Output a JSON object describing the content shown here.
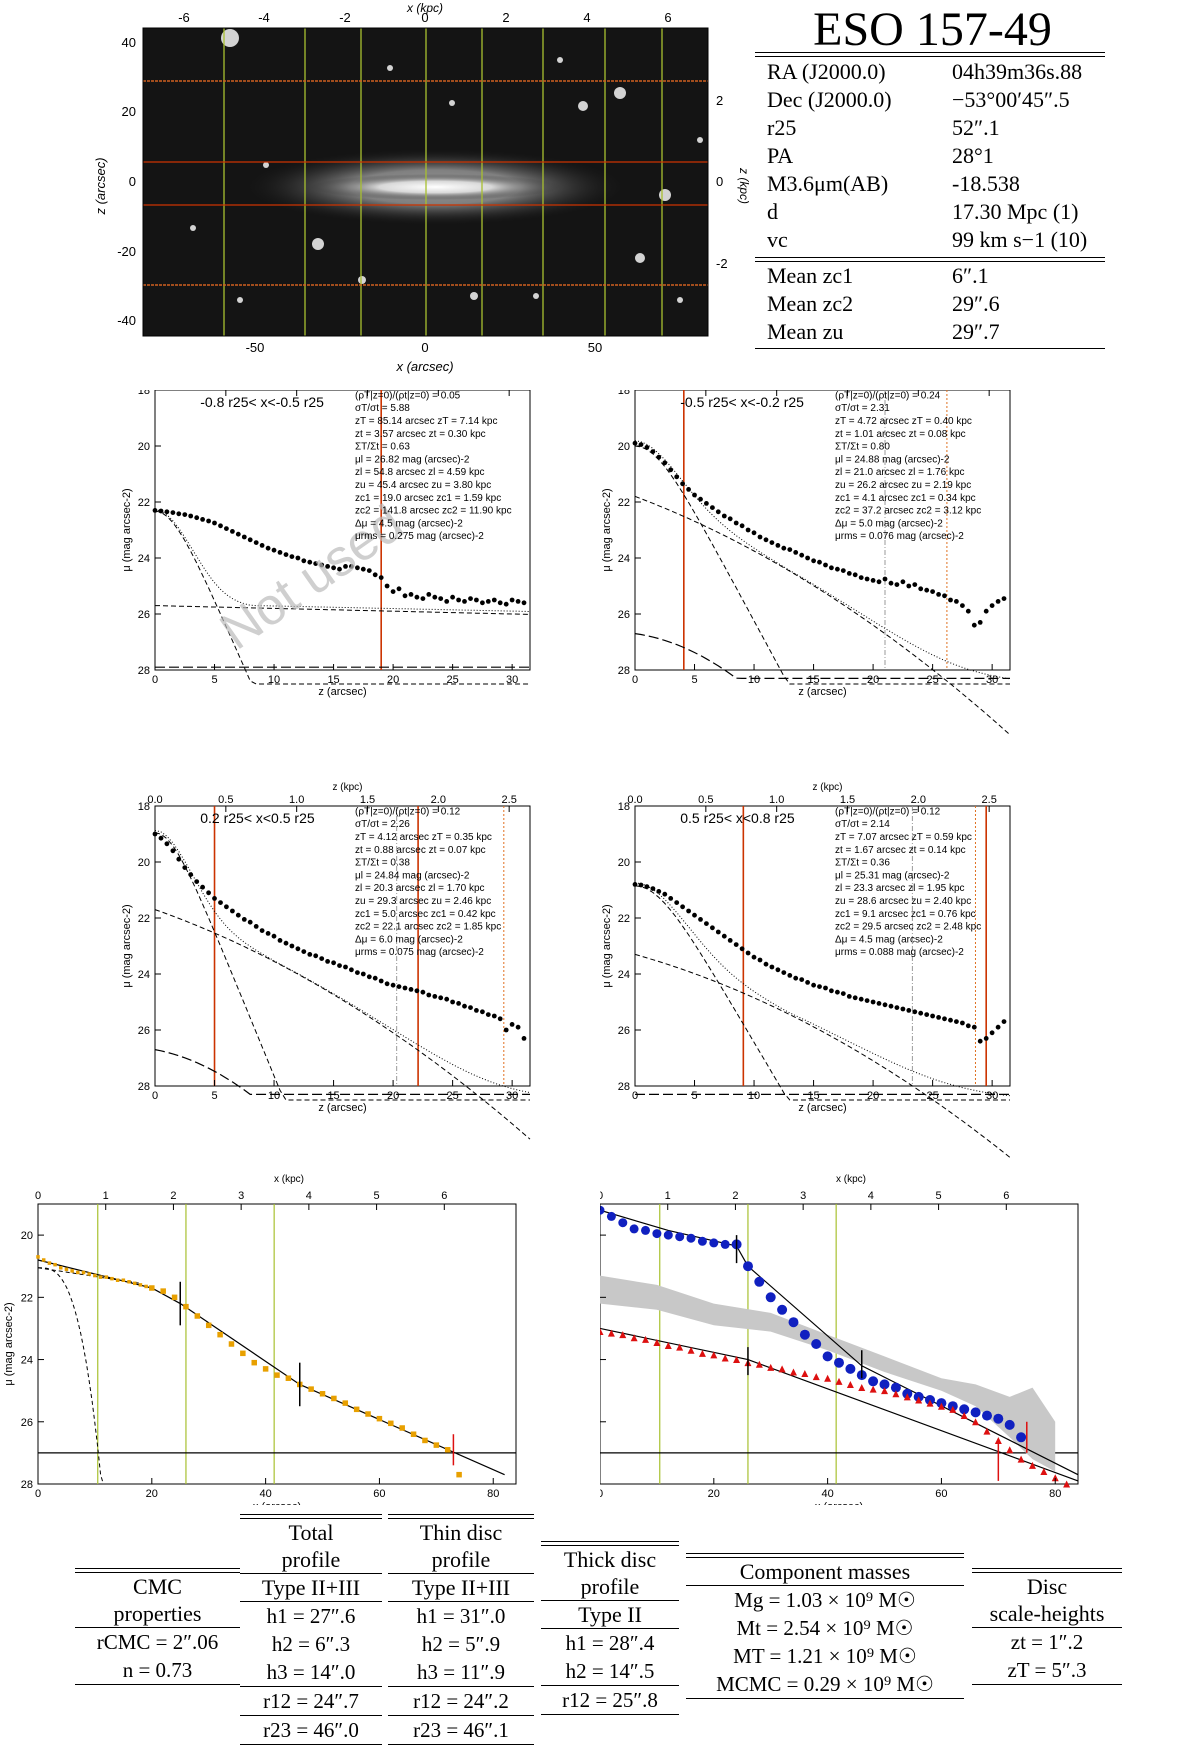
{
  "galaxy": {
    "name": "ESO 157-49",
    "rows": [
      {
        "key": "RA (J2000.0)",
        "value": "04h39m36s.88"
      },
      {
        "key": "Dec (J2000.0)",
        "value": "−53°00′45″.5"
      },
      {
        "key": "r25",
        "value": "52″.1"
      },
      {
        "key": "PA",
        "value": "28°1"
      },
      {
        "key": "M3.6μm(AB)",
        "value": "-18.538"
      },
      {
        "key": "d",
        "value": "17.30 Mpc   (1)"
      },
      {
        "key": "vc",
        "value": "99 km s−1   (10)"
      }
    ],
    "means": [
      {
        "key": "Mean zc1",
        "value": "6″.1"
      },
      {
        "key": "Mean zc2",
        "value": "29″.6"
      },
      {
        "key": "Mean zu",
        "value": "29″.7"
      }
    ]
  },
  "image_panel": {
    "top_label": "x (kpc)",
    "bottom_label": "x (arcsec)",
    "left_label": "z (arcsec)",
    "right_label": "z (kpc)",
    "top_ticks": [
      "-6",
      "-4",
      "-2",
      "0",
      "2",
      "4",
      "6"
    ],
    "bottom_ticks": [
      "-50",
      "0",
      "50"
    ],
    "left_ticks": [
      "40",
      "20",
      "0",
      "-20",
      "-40"
    ],
    "right_ticks": [
      "2",
      "0",
      "-2"
    ]
  },
  "profiles": [
    {
      "label": "-0.8 r25< x<-0.5 r25",
      "watermark": "Not used",
      "params": [
        "(ρT|z=0)/(ρt|z=0) = 0.05",
        "σT/σt = 5.88",
        "zT = 85.14 arcsec    zT = 7.14 kpc",
        "zt = 3.57 arcsec    zt = 0.30 kpc",
        "ΣT/Σt = 0.63",
        "μl = 26.82 mag (arcsec)-2",
        "zl = 54.8 arcsec    zl = 4.59 kpc",
        "zu = 45.4 arcsec    zu = 3.80 kpc",
        "zc1 = 19.0 arcsec   zc1 = 1.59 kpc",
        "zc2 = 141.8 arcsec  zc2 = 11.90 kpc",
        "Δμ = 4.5 mag (arcsec)-2",
        "μrms = 0.275 mag (arcsec)-2"
      ]
    },
    {
      "label": "-0.5 r25< x<-0.2 r25",
      "watermark": "",
      "params": [
        "(ρT|z=0)/(ρt|z=0) = 0.24",
        "σT/σt = 2.31",
        "zT = 4.72 arcsec    zT = 0.40 kpc",
        "zt = 1.01 arcsec    zt = 0.08 kpc",
        "ΣT/Σt = 0.80",
        "μl = 24.88 mag (arcsec)-2",
        "zl = 21.0 arcsec    zl = 1.76 kpc",
        "zu = 26.2 arcsec    zu = 2.19 kpc",
        "zc1 = 4.1 arcsec    zc1 = 0.34 kpc",
        "zc2 = 37.2 arcsec   zc2 = 3.12 kpc",
        "Δμ = 5.0 mag (arcsec)-2",
        "μrms = 0.076 mag (arcsec)-2"
      ]
    },
    {
      "label": "0.2 r25< x<0.5 r25",
      "watermark": "",
      "params": [
        "(ρT|z=0)/(ρt|z=0) = 0.12",
        "σT/σt = 2.26",
        "zT = 4.12 arcsec    zT = 0.35 kpc",
        "zt = 0.88 arcsec    zt = 0.07 kpc",
        "ΣT/Σt = 0.38",
        "μl = 24.84 mag (arcsec)-2",
        "zl = 20.3 arcsec    zl = 1.70 kpc",
        "zu = 29.3 arcsec    zu = 2.46 kpc",
        "zc1 = 5.0 arcsec    zc1 = 0.42 kpc",
        "zc2 = 22.1 arcsec   zc2 = 1.85 kpc",
        "Δμ = 6.0 mag (arcsec)-2",
        "μrms = 0.075 mag (arcsec)-2"
      ]
    },
    {
      "label": "0.5 r25< x<0.8 r25",
      "watermark": "",
      "params": [
        "(ρT|z=0)/(ρt|z=0) = 0.12",
        "σT/σt = 2.14",
        "zT = 7.07 arcsec    zT = 0.59 kpc",
        "zt = 1.67 arcsec    zt = 0.14 kpc",
        "ΣT/Σt = 0.36",
        "μl = 25.31 mag (arcsec)-2",
        "zl = 23.3 arcsec    zl = 1.95 kpc",
        "zu = 28.6 arcsec    zu = 2.40 kpc",
        "zc1 = 9.1 arcsec    zc1 = 0.76 kpc",
        "zc2 = 29.5 arcsec   zc2 = 2.48 kpc",
        "Δμ = 4.5 mag (arcsec)-2",
        "μrms = 0.088 mag (arcsec)-2"
      ]
    }
  ],
  "profile_axes": {
    "xlabel": "z (arcsec)",
    "toplabel": "z (kpc)",
    "ylabel": "μ (mag arcsec-2)",
    "xticks": [
      "0",
      "5",
      "10",
      "15",
      "20",
      "25",
      "30"
    ],
    "topticks": [
      "0.0",
      "0.5",
      "1.0",
      "1.5",
      "2.0",
      "2.5"
    ],
    "yticks": [
      "18",
      "20",
      "22",
      "24",
      "26",
      "28"
    ]
  },
  "bottom_axes": {
    "xlabel": "x (arcsec)",
    "toplabel": "x (kpc)",
    "ylabel": "μ (mag arcsec-2)",
    "xticks": [
      "0",
      "20",
      "40",
      "60",
      "80"
    ],
    "topticks": [
      "0",
      "1",
      "2",
      "3",
      "4",
      "5",
      "6"
    ],
    "yticks": [
      "20",
      "22",
      "24",
      "26",
      "28"
    ]
  },
  "colors": {
    "orange_line": "#cc3300",
    "green_line": "#a8c030",
    "total_points": "#e8a000",
    "thin_points": "#1020c0",
    "thick_points": "#dd1010",
    "band": "#c8c8c8"
  },
  "chart_data": [
    {
      "type": "scatter",
      "title": "-0.8 r25< x<-0.5 r25",
      "xlabel": "z (arcsec)",
      "ylabel": "μ (mag arcsec-2)",
      "xlim": [
        0,
        31.5
      ],
      "ylim": [
        28,
        18
      ],
      "x": [
        0,
        0.5,
        1,
        1.5,
        2,
        2.5,
        3,
        3.5,
        4,
        4.5,
        5,
        5.5,
        6,
        6.5,
        7,
        7.5,
        8,
        8.5,
        9,
        9.5,
        10,
        10.5,
        11,
        11.5,
        12,
        12.5,
        13,
        13.5,
        14,
        14.5,
        15,
        15.5,
        16,
        16.5,
        17,
        17.5,
        18,
        18.5,
        19,
        19.5,
        20,
        20.5,
        21,
        21.5,
        22,
        22.5,
        23,
        23.5,
        24,
        24.5,
        25,
        25.5,
        26,
        26.5,
        27,
        27.5,
        28,
        28.5,
        29,
        29.5,
        30,
        30.5,
        31
      ],
      "y": [
        22.3,
        22.32,
        22.35,
        22.38,
        22.42,
        22.45,
        22.5,
        22.56,
        22.62,
        22.68,
        22.75,
        22.85,
        22.95,
        23.05,
        23.15,
        23.25,
        23.35,
        23.45,
        23.55,
        23.65,
        23.72,
        23.8,
        23.88,
        23.95,
        24.0,
        24.1,
        24.15,
        24.2,
        24.25,
        24.3,
        24.35,
        24.4,
        24.3,
        24.3,
        24.35,
        24.4,
        24.45,
        24.6,
        24.7,
        25.0,
        25.2,
        25.1,
        25.35,
        25.3,
        25.4,
        25.45,
        25.3,
        25.4,
        25.45,
        25.55,
        25.4,
        25.5,
        25.55,
        25.45,
        25.5,
        25.6,
        25.55,
        25.5,
        25.6,
        25.65,
        25.5,
        25.55,
        25.6
      ]
    },
    {
      "type": "scatter",
      "title": "-0.5 r25< x<-0.2 r25",
      "xlabel": "z (arcsec)",
      "ylabel": "μ (mag arcsec-2)",
      "xlim": [
        0,
        31.5
      ],
      "ylim": [
        28,
        18
      ],
      "x": [
        0,
        0.5,
        1,
        1.5,
        2,
        2.5,
        3,
        3.5,
        4,
        4.5,
        5,
        5.5,
        6,
        6.5,
        7,
        7.5,
        8,
        8.5,
        9,
        9.5,
        10,
        10.5,
        11,
        11.5,
        12,
        12.5,
        13,
        13.5,
        14,
        14.5,
        15,
        15.5,
        16,
        16.5,
        17,
        17.5,
        18,
        18.5,
        19,
        19.5,
        20,
        20.5,
        21,
        21.5,
        22,
        22.5,
        23,
        23.5,
        24,
        24.5,
        25,
        25.5,
        26,
        26.5,
        27,
        27.5,
        28,
        28.5,
        29,
        29.5,
        30,
        30.5,
        31
      ],
      "y": [
        19.9,
        19.95,
        20.05,
        20.2,
        20.4,
        20.6,
        20.85,
        21.1,
        21.35,
        21.55,
        21.75,
        21.9,
        22.05,
        22.2,
        22.35,
        22.5,
        22.6,
        22.75,
        22.85,
        23.0,
        23.1,
        23.25,
        23.35,
        23.45,
        23.55,
        23.65,
        23.7,
        23.8,
        23.9,
        24.0,
        24.1,
        24.15,
        24.25,
        24.35,
        24.4,
        24.45,
        24.55,
        24.6,
        24.7,
        24.75,
        24.8,
        24.85,
        24.75,
        24.9,
        24.95,
        24.85,
        25.0,
        24.95,
        25.1,
        25.15,
        25.2,
        25.3,
        25.35,
        25.5,
        25.55,
        25.7,
        25.9,
        26.4,
        26.3,
        25.9,
        25.7,
        25.55,
        25.45
      ]
    },
    {
      "type": "scatter",
      "title": "0.2 r25< x<0.5 r25",
      "xlabel": "z (arcsec)",
      "ylabel": "μ (mag arcsec-2)",
      "xlim": [
        0,
        31.5
      ],
      "ylim": [
        28,
        18
      ],
      "x": [
        0,
        0.5,
        1,
        1.5,
        2,
        2.5,
        3,
        3.5,
        4,
        4.5,
        5,
        5.5,
        6,
        6.5,
        7,
        7.5,
        8,
        8.5,
        9,
        9.5,
        10,
        10.5,
        11,
        11.5,
        12,
        12.5,
        13,
        13.5,
        14,
        14.5,
        15,
        15.5,
        16,
        16.5,
        17,
        17.5,
        18,
        18.5,
        19,
        19.5,
        20,
        20.5,
        21,
        21.5,
        22,
        22.5,
        23,
        23.5,
        24,
        24.5,
        25,
        25.5,
        26,
        26.5,
        27,
        27.5,
        28,
        28.5,
        29,
        29.5,
        30,
        30.5,
        31
      ],
      "y": [
        19.0,
        19.15,
        19.35,
        19.6,
        19.9,
        20.2,
        20.45,
        20.7,
        20.9,
        21.1,
        21.3,
        21.45,
        21.6,
        21.75,
        21.9,
        22.05,
        22.15,
        22.3,
        22.45,
        22.55,
        22.65,
        22.8,
        22.9,
        23.0,
        23.1,
        23.2,
        23.3,
        23.35,
        23.45,
        23.55,
        23.6,
        23.7,
        23.75,
        23.85,
        23.95,
        24.0,
        24.1,
        24.15,
        24.25,
        24.35,
        24.4,
        24.45,
        24.5,
        24.55,
        24.6,
        24.65,
        24.75,
        24.8,
        24.85,
        24.9,
        25.0,
        25.05,
        25.15,
        25.2,
        25.3,
        25.35,
        25.45,
        25.5,
        25.6,
        26.0,
        25.8,
        25.9,
        26.3
      ]
    },
    {
      "type": "scatter",
      "title": "0.5 r25< x<0.8 r25",
      "xlabel": "z (arcsec)",
      "ylabel": "μ (mag arcsec-2)",
      "xlim": [
        0,
        31.5
      ],
      "ylim": [
        28,
        18
      ],
      "x": [
        0,
        0.5,
        1,
        1.5,
        2,
        2.5,
        3,
        3.5,
        4,
        4.5,
        5,
        5.5,
        6,
        6.5,
        7,
        7.5,
        8,
        8.5,
        9,
        9.5,
        10,
        10.5,
        11,
        11.5,
        12,
        12.5,
        13,
        13.5,
        14,
        14.5,
        15,
        15.5,
        16,
        16.5,
        17,
        17.5,
        18,
        18.5,
        19,
        19.5,
        20,
        20.5,
        21,
        21.5,
        22,
        22.5,
        23,
        23.5,
        24,
        24.5,
        25,
        25.5,
        26,
        26.5,
        27,
        27.5,
        28,
        28.5,
        29,
        29.5,
        30,
        30.5,
        31
      ],
      "y": [
        20.8,
        20.82,
        20.88,
        20.95,
        21.05,
        21.15,
        21.3,
        21.45,
        21.6,
        21.75,
        21.9,
        22.05,
        22.2,
        22.35,
        22.5,
        22.65,
        22.8,
        22.95,
        23.1,
        23.25,
        23.4,
        23.5,
        23.65,
        23.75,
        23.85,
        23.95,
        24.05,
        24.15,
        24.2,
        24.3,
        24.4,
        24.45,
        24.5,
        24.6,
        24.65,
        24.7,
        24.8,
        24.85,
        24.9,
        24.95,
        25.0,
        25.05,
        25.1,
        25.15,
        25.2,
        25.25,
        25.3,
        25.35,
        25.4,
        25.45,
        25.5,
        25.55,
        25.6,
        25.65,
        25.7,
        25.75,
        25.85,
        25.9,
        26.4,
        26.3,
        26.1,
        25.9,
        25.7
      ]
    },
    {
      "type": "scatter",
      "title": "",
      "xlabel": "x (arcsec)",
      "ylabel": "μ (mag arcsec-2)",
      "xlim": [
        0,
        84
      ],
      "ylim": [
        28,
        19
      ],
      "series": [
        {
          "x": [
            0,
            1,
            2,
            3,
            4,
            5,
            6,
            7,
            8,
            9,
            10,
            11,
            12,
            13,
            14,
            15,
            16,
            17,
            18,
            19,
            20,
            22,
            24,
            26,
            28,
            30,
            32,
            34,
            36,
            38,
            40,
            42,
            44,
            46,
            48,
            50,
            52,
            54,
            56,
            58,
            60,
            62,
            64,
            66,
            68,
            70,
            72,
            74
          ],
          "y": [
            20.7,
            20.8,
            20.9,
            20.95,
            21.05,
            21.1,
            21.15,
            21.2,
            21.2,
            21.25,
            21.3,
            21.35,
            21.35,
            21.4,
            21.45,
            21.45,
            21.5,
            21.55,
            21.6,
            21.65,
            21.7,
            21.8,
            22.0,
            22.3,
            22.6,
            22.9,
            23.2,
            23.5,
            23.8,
            24.1,
            24.3,
            24.5,
            24.6,
            24.8,
            24.95,
            25.1,
            25.25,
            25.4,
            25.6,
            25.75,
            25.9,
            26.05,
            26.2,
            26.4,
            26.6,
            26.75,
            26.9,
            27.7
          ]
        }
      ]
    },
    {
      "type": "scatter",
      "title": "",
      "xlabel": "x (arcsec)",
      "ylabel": "μ (mag arcsec-2)",
      "xlim": [
        0,
        84
      ],
      "ylim": [
        28,
        19
      ],
      "series": [
        {
          "x": [
            0,
            2,
            4,
            6,
            8,
            10,
            12,
            14,
            16,
            18,
            20,
            22,
            24,
            26,
            28,
            30,
            32,
            34,
            36,
            38,
            40,
            42,
            44,
            46,
            48,
            50,
            52,
            54,
            56,
            58,
            60,
            62,
            64,
            66,
            68,
            70,
            72,
            74
          ],
          "y": [
            19.2,
            19.4,
            19.6,
            19.8,
            19.85,
            19.95,
            20.0,
            20.05,
            20.1,
            20.2,
            20.25,
            20.3,
            20.3,
            21.0,
            21.5,
            22.0,
            22.4,
            22.8,
            23.2,
            23.5,
            23.9,
            24.1,
            24.3,
            24.5,
            24.7,
            24.8,
            24.9,
            25.1,
            25.2,
            25.3,
            25.4,
            25.5,
            25.6,
            25.7,
            25.8,
            25.9,
            26.1,
            26.5
          ]
        },
        {
          "x": [
            0,
            2,
            4,
            6,
            8,
            10,
            12,
            14,
            16,
            18,
            20,
            22,
            24,
            26,
            28,
            30,
            32,
            34,
            36,
            38,
            40,
            42,
            44,
            46,
            48,
            50,
            52,
            54,
            56,
            58,
            60,
            62,
            64,
            66,
            68,
            70,
            72,
            74,
            76,
            78,
            80,
            82
          ],
          "y": [
            23.1,
            23.15,
            23.2,
            23.3,
            23.35,
            23.45,
            23.55,
            23.6,
            23.7,
            23.8,
            23.85,
            23.95,
            24.0,
            24.1,
            24.15,
            24.25,
            24.3,
            24.4,
            24.45,
            24.55,
            24.6,
            24.7,
            24.8,
            24.9,
            24.95,
            25.0,
            25.1,
            25.2,
            25.3,
            25.4,
            25.5,
            25.6,
            25.8,
            26.0,
            26.3,
            26.6,
            26.9,
            27.2,
            27.4,
            27.6,
            27.8,
            28.0
          ]
        }
      ]
    }
  ],
  "tables": {
    "cmc": {
      "head": [
        "CMC",
        "properties"
      ],
      "rows": [
        "rCMC = 2″.06",
        "n = 0.73"
      ]
    },
    "total": {
      "head": [
        "Total",
        "profile",
        "Type II+III"
      ],
      "rows": [
        "h1 = 27″.6",
        "h2 = 6″.3",
        "h3 = 14″.0",
        "r12 = 24″.7",
        "r23 = 46″.0"
      ]
    },
    "thin": {
      "head": [
        "Thin disc",
        "profile",
        "Type II+III"
      ],
      "rows": [
        "h1 = 31″.0",
        "h2 = 5″.9",
        "h3 = 11″.9",
        "r12 = 24″.2",
        "r23 = 46″.1"
      ]
    },
    "thick": {
      "head": [
        "Thick disc",
        "profile",
        "Type II"
      ],
      "rows": [
        "h1 = 28″.4",
        "h2 = 14″.5",
        "r12 = 25″.8"
      ]
    },
    "masses": {
      "head": [
        "Component masses"
      ],
      "rows": [
        "Mg = 1.03 × 10⁹ M☉",
        "Mt = 2.54 × 10⁹ M☉",
        "MT = 1.21 × 10⁹ M☉",
        "MCMC = 0.29 × 10⁹ M☉"
      ]
    },
    "heights": {
      "head": [
        "Disc",
        "scale-heights"
      ],
      "rows": [
        "zt = 1″.2",
        "zT = 5″.3"
      ]
    }
  }
}
